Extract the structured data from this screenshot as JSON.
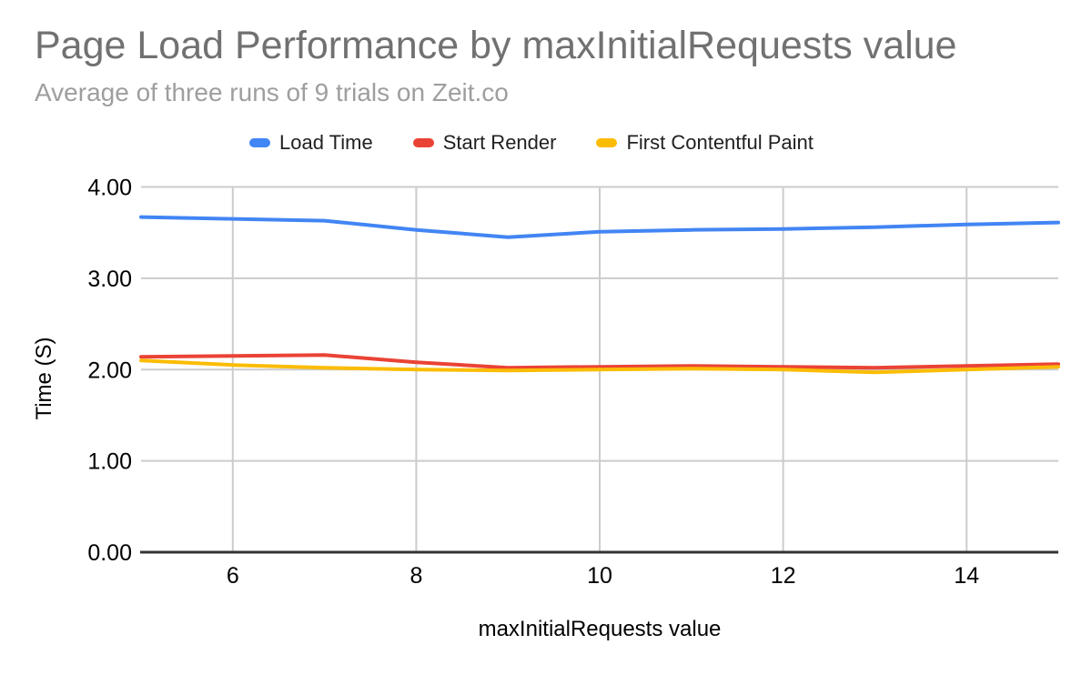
{
  "chart_data": {
    "type": "line",
    "title": "Page Load Performance by maxInitialRequests value",
    "subtitle": "Average of three runs of 9 trials on Zeit.co",
    "xlabel": "maxInitialRequests value",
    "ylabel": "Time (S)",
    "x": [
      5,
      6,
      7,
      8,
      9,
      10,
      11,
      12,
      13,
      14,
      15
    ],
    "series": [
      {
        "name": "Load Time",
        "color": "#4285F4",
        "values": [
          3.67,
          3.65,
          3.63,
          3.53,
          3.45,
          3.51,
          3.53,
          3.54,
          3.56,
          3.59,
          3.61
        ]
      },
      {
        "name": "Start Render",
        "color": "#EA4335",
        "values": [
          2.14,
          2.15,
          2.16,
          2.08,
          2.02,
          2.03,
          2.04,
          2.03,
          2.02,
          2.04,
          2.06
        ]
      },
      {
        "name": "First Contentful Paint",
        "color": "#FBBC04",
        "values": [
          2.1,
          2.05,
          2.02,
          2.0,
          1.99,
          2.0,
          2.01,
          2.0,
          1.97,
          2.0,
          2.03
        ]
      }
    ],
    "xlim": [
      5,
      15
    ],
    "ylim": [
      0,
      4
    ],
    "x_ticks": [
      {
        "value": 6,
        "label": "6"
      },
      {
        "value": 8,
        "label": "8"
      },
      {
        "value": 10,
        "label": "10"
      },
      {
        "value": 12,
        "label": "12"
      },
      {
        "value": 14,
        "label": "14"
      }
    ],
    "y_ticks": [
      {
        "value": 0,
        "label": "0.00"
      },
      {
        "value": 1,
        "label": "1.00"
      },
      {
        "value": 2,
        "label": "2.00"
      },
      {
        "value": 3,
        "label": "3.00"
      },
      {
        "value": 4,
        "label": "4.00"
      }
    ],
    "grid": true,
    "legend_position": "top"
  },
  "style": {
    "background": "#ffffff",
    "title_color": "#717171",
    "subtitle_color": "#9e9e9e",
    "tick_label_color": "#000000",
    "axis_title_color": "#000000",
    "legend_text_color": "#212121",
    "grid_color": "#cccccc",
    "baseline_color": "#333333"
  }
}
